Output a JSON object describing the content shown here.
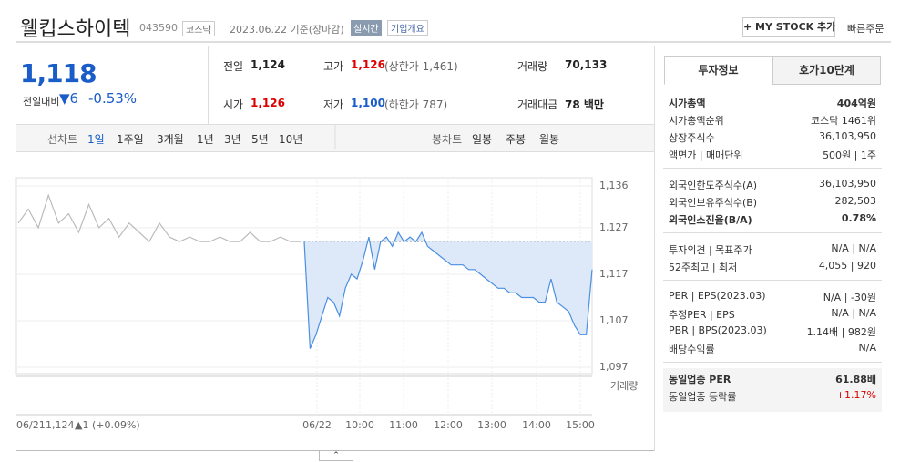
{
  "header": {
    "title": "웰킵스하이텍",
    "code": "043590",
    "market": "코스닥",
    "date": "2023.06.22 기준(장마감)",
    "realtime": "실시간",
    "company_info": "기업개요",
    "mystock": "+ MY STOCK 추가",
    "quick_order": "빠른주문"
  },
  "price": {
    "current": "1,118",
    "change_label": "전일대비",
    "change": "▼6",
    "change_pct": "-0.53%"
  },
  "summary": [
    [
      {
        "label": "전일",
        "value": "1,124",
        "sub": ""
      },
      {
        "label": "고가",
        "value": "1,126",
        "sub": "(상한가 1,461)"
      },
      {
        "label": "거래량",
        "value": "70,133",
        "sub": ""
      }
    ],
    [
      {
        "label": "시가",
        "value": "1,126",
        "sub": ""
      },
      {
        "label": "저가",
        "value": "1,100",
        "sub": "(하한가 787)"
      },
      {
        "label": "거래대금",
        "value": "78 백만",
        "sub": ""
      }
    ]
  ],
  "tabs": {
    "line_label": "선차트",
    "line": [
      "1일",
      "1주일",
      "3개월",
      "1년",
      "3년",
      "5년",
      "10년"
    ],
    "candle_label": "봉차트",
    "candle": [
      "일봉",
      "주봉",
      "월봉"
    ]
  },
  "chart_data": {
    "type": "line",
    "ylim": [
      1097,
      1136
    ],
    "yticks": [
      {
        "value": 1136,
        "label": "1,136"
      },
      {
        "value": 1127,
        "label": "1,127"
      },
      {
        "value": 1117,
        "label": "1,117"
      },
      {
        "value": 1107,
        "label": "1,107"
      },
      {
        "value": 1097,
        "label": "1,097"
      }
    ],
    "x_labels": [
      "06/22",
      "10:00",
      "11:00",
      "12:00",
      "13:00",
      "14:00",
      "15:00"
    ],
    "prev_day": "06/21",
    "prev_close": {
      "label": "1,124",
      "value": 1124
    },
    "prev_change": "▲1 (+0.09%)",
    "volume_label": "거래량",
    "series": [
      {
        "name": "06/21",
        "color": "#bbbbbb",
        "values": [
          1128,
          1131,
          1127,
          1134,
          1128,
          1130,
          1126,
          1132,
          1127,
          1129,
          1125,
          1128,
          1126,
          1124,
          1128,
          1125,
          1124,
          1125,
          1124,
          1124,
          1125,
          1124,
          1124,
          1126,
          1124,
          1124,
          1125,
          1124,
          1124
        ]
      },
      {
        "name": "06/22",
        "color": "#4a8fe0",
        "values": [
          1124,
          1101,
          1104,
          1108,
          1112,
          1111,
          1108,
          1114,
          1117,
          1116,
          1120,
          1125,
          1118,
          1124,
          1125,
          1123,
          1126,
          1124,
          1125,
          1124,
          1126,
          1123,
          1122,
          1121,
          1120,
          1119,
          1119,
          1119,
          1118,
          1118,
          1117,
          1116,
          1115,
          1114,
          1114,
          1113,
          1113,
          1112,
          1112,
          1112,
          1111,
          1111,
          1116,
          1111,
          1110,
          1109,
          1106,
          1104,
          1104,
          1118
        ]
      }
    ]
  },
  "side": {
    "tabs": [
      "투자정보",
      "호가10단계"
    ],
    "groups": [
      [
        [
          "시가총액",
          "404억원"
        ],
        [
          "시가총액순위",
          "코스닥 1461위"
        ],
        [
          "상장주식수",
          "36,103,950"
        ],
        [
          "액면가 | 매매단위",
          "500원 | 1주"
        ]
      ],
      [
        [
          "외국인한도주식수(A)",
          "36,103,950"
        ],
        [
          "외국인보유주식수(B)",
          "282,503"
        ],
        [
          "외국인소진율(B/A)",
          "0.78%"
        ]
      ],
      [
        [
          "투자의견 | 목표주가",
          "N/A | N/A"
        ],
        [
          "52주최고 | 최저",
          "4,055 | 920"
        ]
      ],
      [
        [
          "PER | EPS(2023.03)",
          "N/A | -30원"
        ],
        [
          "추정PER | EPS",
          "N/A | N/A"
        ],
        [
          "PBR | BPS(2023.03)",
          "1.14배 | 982원"
        ],
        [
          "배당수익률",
          "N/A"
        ]
      ],
      [
        [
          "동일업종 PER",
          "61.88배"
        ],
        [
          "동일업종 등락률",
          "+1.17%"
        ]
      ]
    ]
  }
}
